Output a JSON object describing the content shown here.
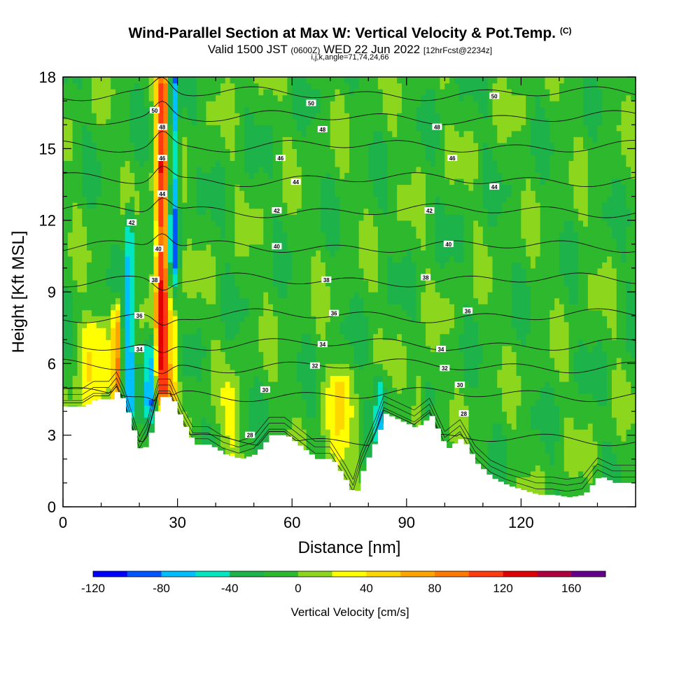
{
  "title": {
    "main": "Wind-Parallel Section at Max W: Vertical Velocity & Pot.Temp.",
    "copyright": "(C)",
    "valid_prefix": "Valid 1500 JST",
    "valid_utc": "(0600Z)",
    "valid_date": "WED 22 Jun 2022",
    "forecast": "[12hrFcst@2234z]",
    "indices": "i,j,k,angle=71,74,24,66"
  },
  "chart_data": {
    "type": "heatmap",
    "xlabel": "Distance [nm]",
    "ylabel": "Height [Kft MSL]",
    "xlim": [
      0,
      150
    ],
    "ylim": [
      0,
      18
    ],
    "xticks": [
      0,
      30,
      60,
      90,
      120
    ],
    "xtick_labels": [
      "0",
      "30",
      "60",
      "90",
      "120"
    ],
    "yticks": [
      0,
      3,
      6,
      9,
      12,
      15,
      18
    ],
    "ytick_labels": [
      "0",
      "3",
      "6",
      "9",
      "12",
      "15",
      "18"
    ],
    "colorbar": {
      "title": "Vertical Velocity [cm/s]",
      "min": -120,
      "max": 180,
      "step": 20,
      "tick_values": [
        -120,
        -80,
        -40,
        0,
        40,
        80,
        120,
        160
      ],
      "tick_labels": [
        "-120",
        "-80",
        "-40",
        "0",
        "40",
        "80",
        "120",
        "160"
      ],
      "colors": [
        "#0000ff",
        "#0055ff",
        "#00bfff",
        "#00e6c0",
        "#1db34a",
        "#2eb82e",
        "#8cd61e",
        "#ffff00",
        "#ffd700",
        "#ffa500",
        "#ff7a00",
        "#ff3a10",
        "#e00000",
        "#b00040",
        "#66008c"
      ]
    },
    "background_w": -10,
    "updraft_cores": [
      {
        "x": 26,
        "ybot": 5,
        "ytop": 17.5,
        "w": 130,
        "half_width": 1.8
      },
      {
        "x": 14,
        "ybot": 4.6,
        "ytop": 8,
        "w": 95,
        "half_width": 1.0
      },
      {
        "x": 29,
        "ybot": 4.5,
        "ytop": 9,
        "w": 55,
        "half_width": 1.6
      },
      {
        "x": 7,
        "ybot": 4.6,
        "ytop": 7.2,
        "w": 45,
        "half_width": 4.0
      },
      {
        "x": 72,
        "ybot": 1,
        "ytop": 5,
        "w": 45,
        "half_width": 3.0
      },
      {
        "x": 44,
        "ybot": 2,
        "ytop": 4.5,
        "w": 35,
        "half_width": 2.0
      },
      {
        "x": 93,
        "ybot": 4,
        "ytop": 5,
        "w": 40,
        "half_width": 1.5
      }
    ],
    "downdraft_cores": [
      {
        "x": 17.5,
        "ybot": 4.5,
        "ytop": 12,
        "w": -65,
        "half_width": 1.2
      },
      {
        "x": 23,
        "ybot": 4.5,
        "ytop": 6.5,
        "w": -60,
        "half_width": 1.5
      },
      {
        "x": 29,
        "ybot": 9,
        "ytop": 18,
        "w": -75,
        "half_width": 1.3
      },
      {
        "x": 83,
        "ybot": 3.5,
        "ytop": 5,
        "w": -45,
        "half_width": 1.5
      }
    ],
    "terrain": {
      "x": [
        0,
        5,
        8,
        12,
        14,
        16,
        18,
        20,
        22,
        25,
        28,
        31,
        34,
        38,
        42,
        46,
        50,
        54,
        58,
        62,
        66,
        70,
        74,
        76,
        78,
        82,
        84,
        88,
        92,
        96,
        100,
        104,
        108,
        112,
        116,
        120,
        124,
        128,
        132,
        136,
        140,
        144,
        150
      ],
      "y": [
        4.2,
        4.2,
        4.5,
        4.5,
        4.9,
        4.2,
        3.2,
        2.2,
        2.8,
        4.6,
        4.6,
        3.5,
        2.6,
        2.6,
        2.2,
        2.0,
        2.2,
        3.0,
        3.0,
        2.5,
        2.0,
        2.0,
        1.0,
        0.4,
        1.5,
        3.0,
        3.9,
        3.6,
        3.3,
        3.8,
        2.4,
        2.9,
        1.8,
        1.2,
        0.9,
        0.7,
        0.5,
        0.5,
        0.4,
        0.5,
        1.3,
        1.0,
        1.0
      ]
    },
    "theta_contours": {
      "unit": "K",
      "levels": [
        28,
        30,
        32,
        34,
        36,
        38,
        40,
        42,
        44,
        46,
        48,
        50
      ],
      "base_heights_kft": [
        2.8,
        4.7,
        5.9,
        6.8,
        8.0,
        9.5,
        10.9,
        12.4,
        13.7,
        15.1,
        16.3,
        17.3
      ],
      "labels": [
        {
          "text": "28",
          "x": 49,
          "y": 3.0
        },
        {
          "text": "28",
          "x": 105,
          "y": 3.9
        },
        {
          "text": "30",
          "x": 53,
          "y": 4.9
        },
        {
          "text": "30",
          "x": 104,
          "y": 5.1
        },
        {
          "text": "32",
          "x": 66,
          "y": 5.9
        },
        {
          "text": "32",
          "x": 100,
          "y": 5.8
        },
        {
          "text": "34",
          "x": 20,
          "y": 6.6
        },
        {
          "text": "34",
          "x": 68,
          "y": 6.8
        },
        {
          "text": "34",
          "x": 99,
          "y": 6.6
        },
        {
          "text": "36",
          "x": 20,
          "y": 8.0
        },
        {
          "text": "36",
          "x": 71,
          "y": 8.1
        },
        {
          "text": "36",
          "x": 106,
          "y": 8.2
        },
        {
          "text": "38",
          "x": 24,
          "y": 9.5
        },
        {
          "text": "38",
          "x": 69,
          "y": 9.5
        },
        {
          "text": "38",
          "x": 95,
          "y": 9.6
        },
        {
          "text": "40",
          "x": 25,
          "y": 10.8
        },
        {
          "text": "40",
          "x": 56,
          "y": 10.9
        },
        {
          "text": "40",
          "x": 101,
          "y": 11.0
        },
        {
          "text": "42",
          "x": 18,
          "y": 11.9
        },
        {
          "text": "42",
          "x": 56,
          "y": 12.4
        },
        {
          "text": "42",
          "x": 96,
          "y": 12.4
        },
        {
          "text": "44",
          "x": 26,
          "y": 13.1
        },
        {
          "text": "44",
          "x": 61,
          "y": 13.6
        },
        {
          "text": "44",
          "x": 113,
          "y": 13.4
        },
        {
          "text": "46",
          "x": 26,
          "y": 14.6
        },
        {
          "text": "46",
          "x": 57,
          "y": 14.6
        },
        {
          "text": "46",
          "x": 102,
          "y": 14.6
        },
        {
          "text": "48",
          "x": 26,
          "y": 15.9
        },
        {
          "text": "48",
          "x": 68,
          "y": 15.8
        },
        {
          "text": "48",
          "x": 98,
          "y": 15.9
        },
        {
          "text": "50",
          "x": 24,
          "y": 16.6
        },
        {
          "text": "50",
          "x": 65,
          "y": 16.9
        },
        {
          "text": "50",
          "x": 113,
          "y": 17.2
        }
      ]
    }
  }
}
